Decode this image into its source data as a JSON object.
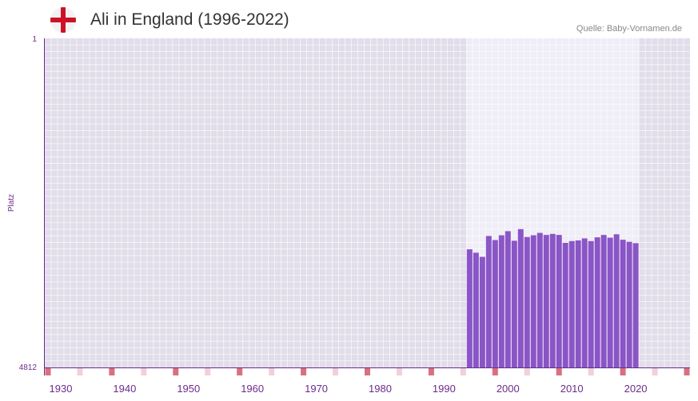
{
  "title": "Ali in England (1996-2022)",
  "source": "Quelle: Baby-Vornamen.de",
  "flag_icon": "england-flag-icon",
  "chart_data": {
    "type": "bar",
    "title": "Ali in England (1996-2022)",
    "xlabel": "",
    "ylabel": "Platz",
    "y_axis_inverted": true,
    "ylim": [
      1,
      4812
    ],
    "y_ticks": [
      1,
      4812
    ],
    "xlim": [
      1928,
      2029
    ],
    "x_ticks": [
      1930,
      1940,
      1950,
      1960,
      1970,
      1980,
      1990,
      2000,
      2010,
      2020
    ],
    "highlight_range": [
      1996,
      2022
    ],
    "colors": {
      "bar": "#8a55c6",
      "plot_bg": "#e2ddea",
      "highlight_bg": "#efedf7",
      "axis": "#6b2c8a",
      "tick_label": "#6b2c8a",
      "decade_marker": "#d9707f",
      "half_decade_marker": "#f1d0d6"
    },
    "x": [
      1994,
      1995,
      1996,
      1997,
      1998,
      1999,
      2000,
      2001,
      2002,
      2003,
      2004,
      2005,
      2006,
      2007,
      2008,
      2009,
      2010,
      2011,
      2012,
      2013,
      2014,
      2015,
      2016,
      2017,
      2018,
      2019,
      2020
    ],
    "values": [
      3085,
      3135,
      3195,
      2890,
      2950,
      2880,
      2820,
      2960,
      2790,
      2905,
      2880,
      2845,
      2875,
      2860,
      2875,
      2990,
      2965,
      2955,
      2925,
      2965,
      2910,
      2875,
      2915,
      2865,
      2945,
      2975,
      2995
    ]
  }
}
